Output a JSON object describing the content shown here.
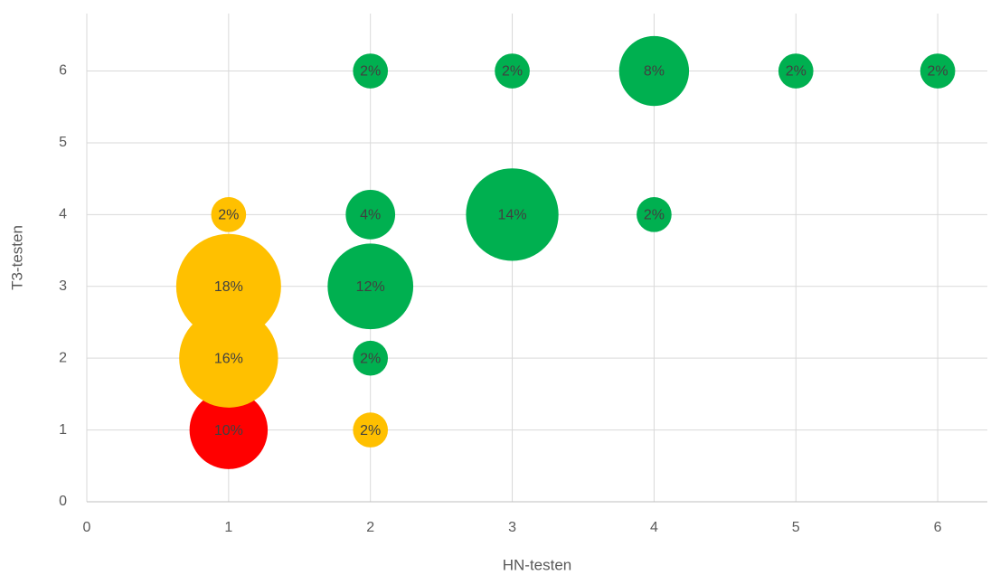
{
  "chart_data": {
    "type": "bubble",
    "x_label": "HN-testen",
    "y_label": "T3-testen",
    "xlim": [
      0,
      6.35
    ],
    "xticks": [
      0,
      1,
      2,
      3,
      4,
      5,
      6
    ],
    "ylim": [
      0,
      6.8
    ],
    "yticks": [
      0,
      1,
      2,
      3,
      4,
      5,
      6
    ],
    "grid": true,
    "series": [
      {
        "color": "#ff0000",
        "x": [
          1
        ],
        "values": [
          1
        ],
        "sizes": [
          10
        ],
        "value_labels": [
          "10%"
        ]
      },
      {
        "color": "#ffc000",
        "x": [
          1,
          1,
          1,
          2
        ],
        "values": [
          4,
          3,
          2,
          1
        ],
        "sizes": [
          2,
          18,
          16,
          2
        ],
        "value_labels": [
          "2%",
          "18%",
          "16%",
          "2%"
        ]
      },
      {
        "color": "#00b050",
        "x": [
          2,
          3,
          4,
          5,
          6,
          2,
          3,
          4,
          2,
          2
        ],
        "values": [
          6,
          6,
          6,
          6,
          6,
          4,
          4,
          4,
          3,
          2
        ],
        "sizes": [
          2,
          2,
          8,
          2,
          2,
          4,
          14,
          2,
          12,
          2
        ],
        "value_labels": [
          "2%",
          "2%",
          "8%",
          "2%",
          "2%",
          "4%",
          "14%",
          "2%",
          "12%",
          "2%"
        ]
      }
    ]
  }
}
